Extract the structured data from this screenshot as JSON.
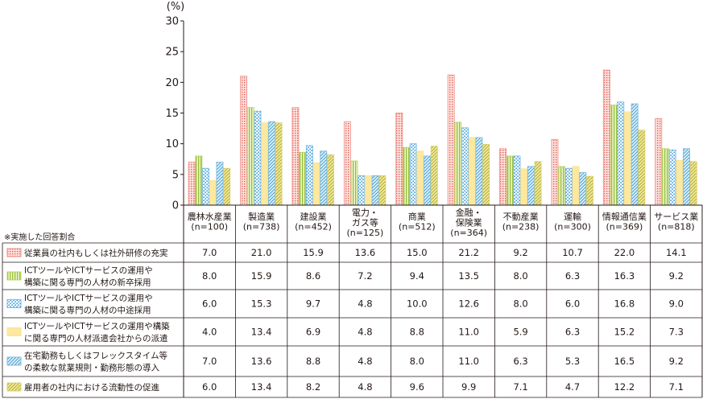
{
  "chart_data": {
    "type": "bar",
    "y_unit": "(%)",
    "ylim": [
      0,
      30
    ],
    "yticks": [
      0,
      5,
      10,
      15,
      20,
      25,
      30
    ],
    "grid": false,
    "legend_position": "table-left",
    "table_note": "※実施した回答割合",
    "categories": [
      [
        "農林水産業",
        "(n=100)"
      ],
      [
        "製造業",
        "(n=738)"
      ],
      [
        "建設業",
        "(n=452)"
      ],
      [
        "電力・",
        "ガス等",
        "(n=125)"
      ],
      [
        "商業",
        "(n=512)"
      ],
      [
        "金融・",
        "保険業",
        "(n=364)"
      ],
      [
        "不動産業",
        "(n=238)"
      ],
      [
        "運輸",
        "(n=300)"
      ],
      [
        "情報通信業",
        "(n=369)"
      ],
      [
        "サービス業",
        "(n=818)"
      ]
    ],
    "series": [
      {
        "name": [
          "従業員の社内もしくは社外研修の充実"
        ],
        "pattern": "grid",
        "color": "#f08f86",
        "values": [
          7.0,
          21.0,
          15.9,
          13.6,
          15.0,
          21.2,
          9.2,
          10.7,
          22.0,
          14.1
        ],
        "labels": [
          "7.0",
          "21.0",
          "15.9",
          "13.6",
          "15.0",
          "21.2",
          "9.2",
          "10.7",
          "22.0",
          "14.1"
        ]
      },
      {
        "name": [
          "ICTツールやICTサービスの運用や",
          "構築に関る専門の人材の新卒採用"
        ],
        "pattern": "vlines",
        "color": "#b8d35a",
        "values": [
          8.0,
          15.9,
          8.6,
          7.2,
          9.4,
          13.5,
          8.0,
          6.3,
          16.3,
          9.2
        ],
        "labels": [
          "8.0",
          "15.9",
          "8.6",
          "7.2",
          "9.4",
          "13.5",
          "8.0",
          "6.3",
          "16.3",
          "9.2"
        ]
      },
      {
        "name": [
          "ICTツールやICTサービスの運用や",
          "構築に関る専門の人材の中途採用"
        ],
        "pattern": "dots",
        "color": "#6fb7e6",
        "values": [
          6.0,
          15.3,
          9.7,
          4.8,
          10.0,
          12.6,
          8.0,
          6.0,
          16.8,
          9.0
        ],
        "labels": [
          "6.0",
          "15.3",
          "9.7",
          "4.8",
          "10.0",
          "12.6",
          "8.0",
          "6.0",
          "16.8",
          "9.0"
        ]
      },
      {
        "name": [
          "ICTツールやICTサービスの運用や構築",
          "に関る専門の人材派遣会社からの派遣"
        ],
        "pattern": "solid",
        "color": "#fbe08e",
        "values": [
          4.0,
          13.4,
          6.9,
          4.8,
          8.8,
          11.0,
          5.9,
          6.3,
          15.2,
          7.3
        ],
        "labels": [
          "4.0",
          "13.4",
          "6.9",
          "4.8",
          "8.8",
          "11.0",
          "5.9",
          "6.3",
          "15.2",
          "7.3"
        ]
      },
      {
        "name": [
          "在宅勤務もしくはフレックスタイム等",
          "の柔軟な就業規則・勤務形態の導入"
        ],
        "pattern": "diag",
        "color": "#74b9dc",
        "values": [
          7.0,
          13.6,
          8.8,
          4.8,
          8.0,
          11.0,
          6.3,
          5.3,
          16.5,
          9.2
        ],
        "labels": [
          "7.0",
          "13.6",
          "8.8",
          "4.8",
          "8.0",
          "11.0",
          "6.3",
          "5.3",
          "16.5",
          "9.2"
        ]
      },
      {
        "name": [
          "雇用者の社内における流動性の促進"
        ],
        "pattern": "hatch",
        "color": "#d8cf6a",
        "values": [
          6.0,
          13.4,
          8.2,
          4.8,
          9.6,
          9.9,
          7.1,
          4.7,
          12.2,
          7.1
        ],
        "labels": [
          "6.0",
          "13.4",
          "8.2",
          "4.8",
          "9.6",
          "9.9",
          "7.1",
          "4.7",
          "12.2",
          "7.1"
        ]
      }
    ]
  }
}
